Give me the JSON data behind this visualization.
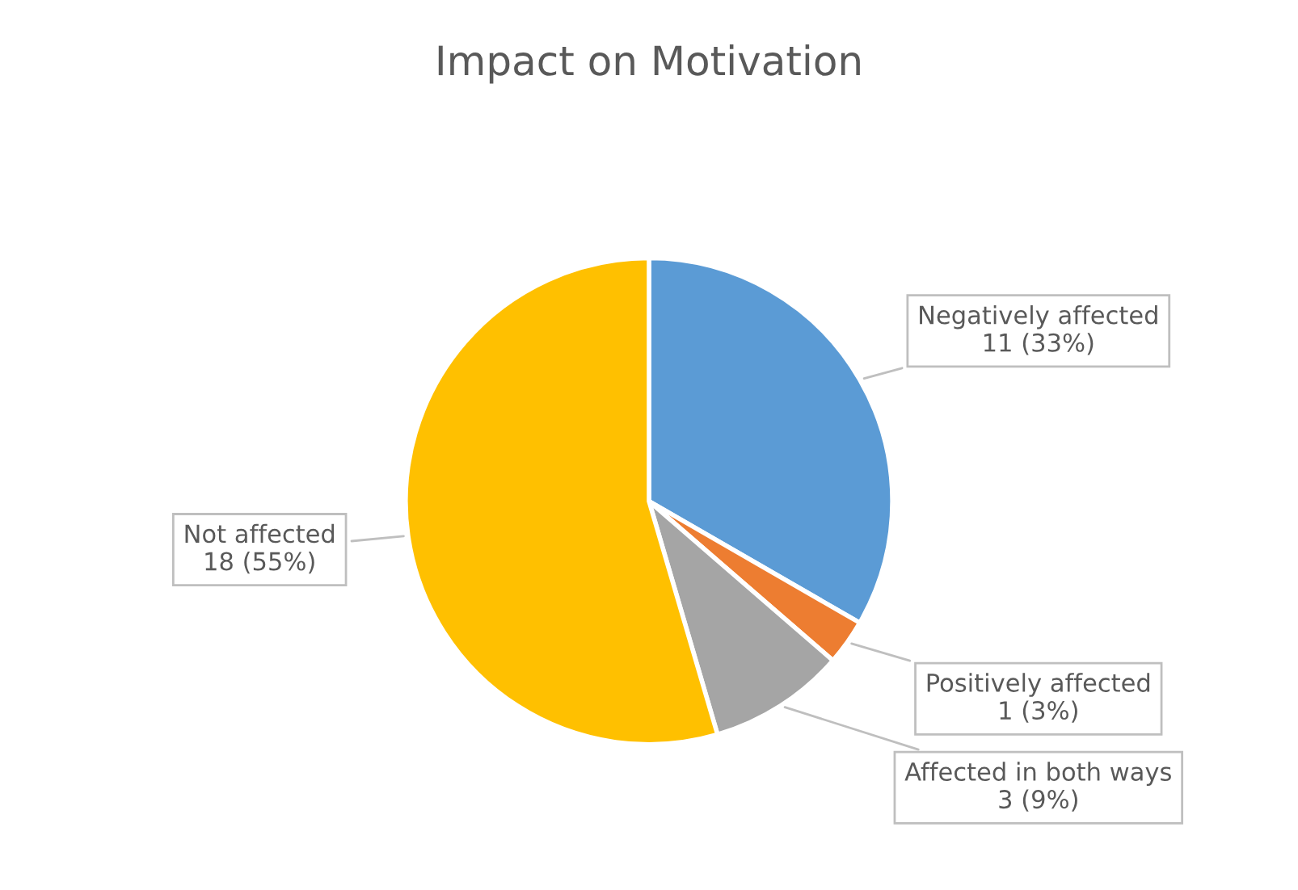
{
  "chart_data": {
    "type": "pie",
    "title": "Impact on Motivation",
    "categories": [
      "Negatively affected",
      "Positively affected",
      "Affected in both ways",
      "Not affected"
    ],
    "values": [
      11,
      1,
      3,
      18
    ],
    "colors": [
      "#5b9bd5",
      "#ed7d31",
      "#a5a5a5",
      "#ffc000"
    ],
    "value_labels": [
      "11 (33%)",
      "1 (3%)",
      "3 (9%)",
      "18 (55%)"
    ],
    "legend": false
  }
}
